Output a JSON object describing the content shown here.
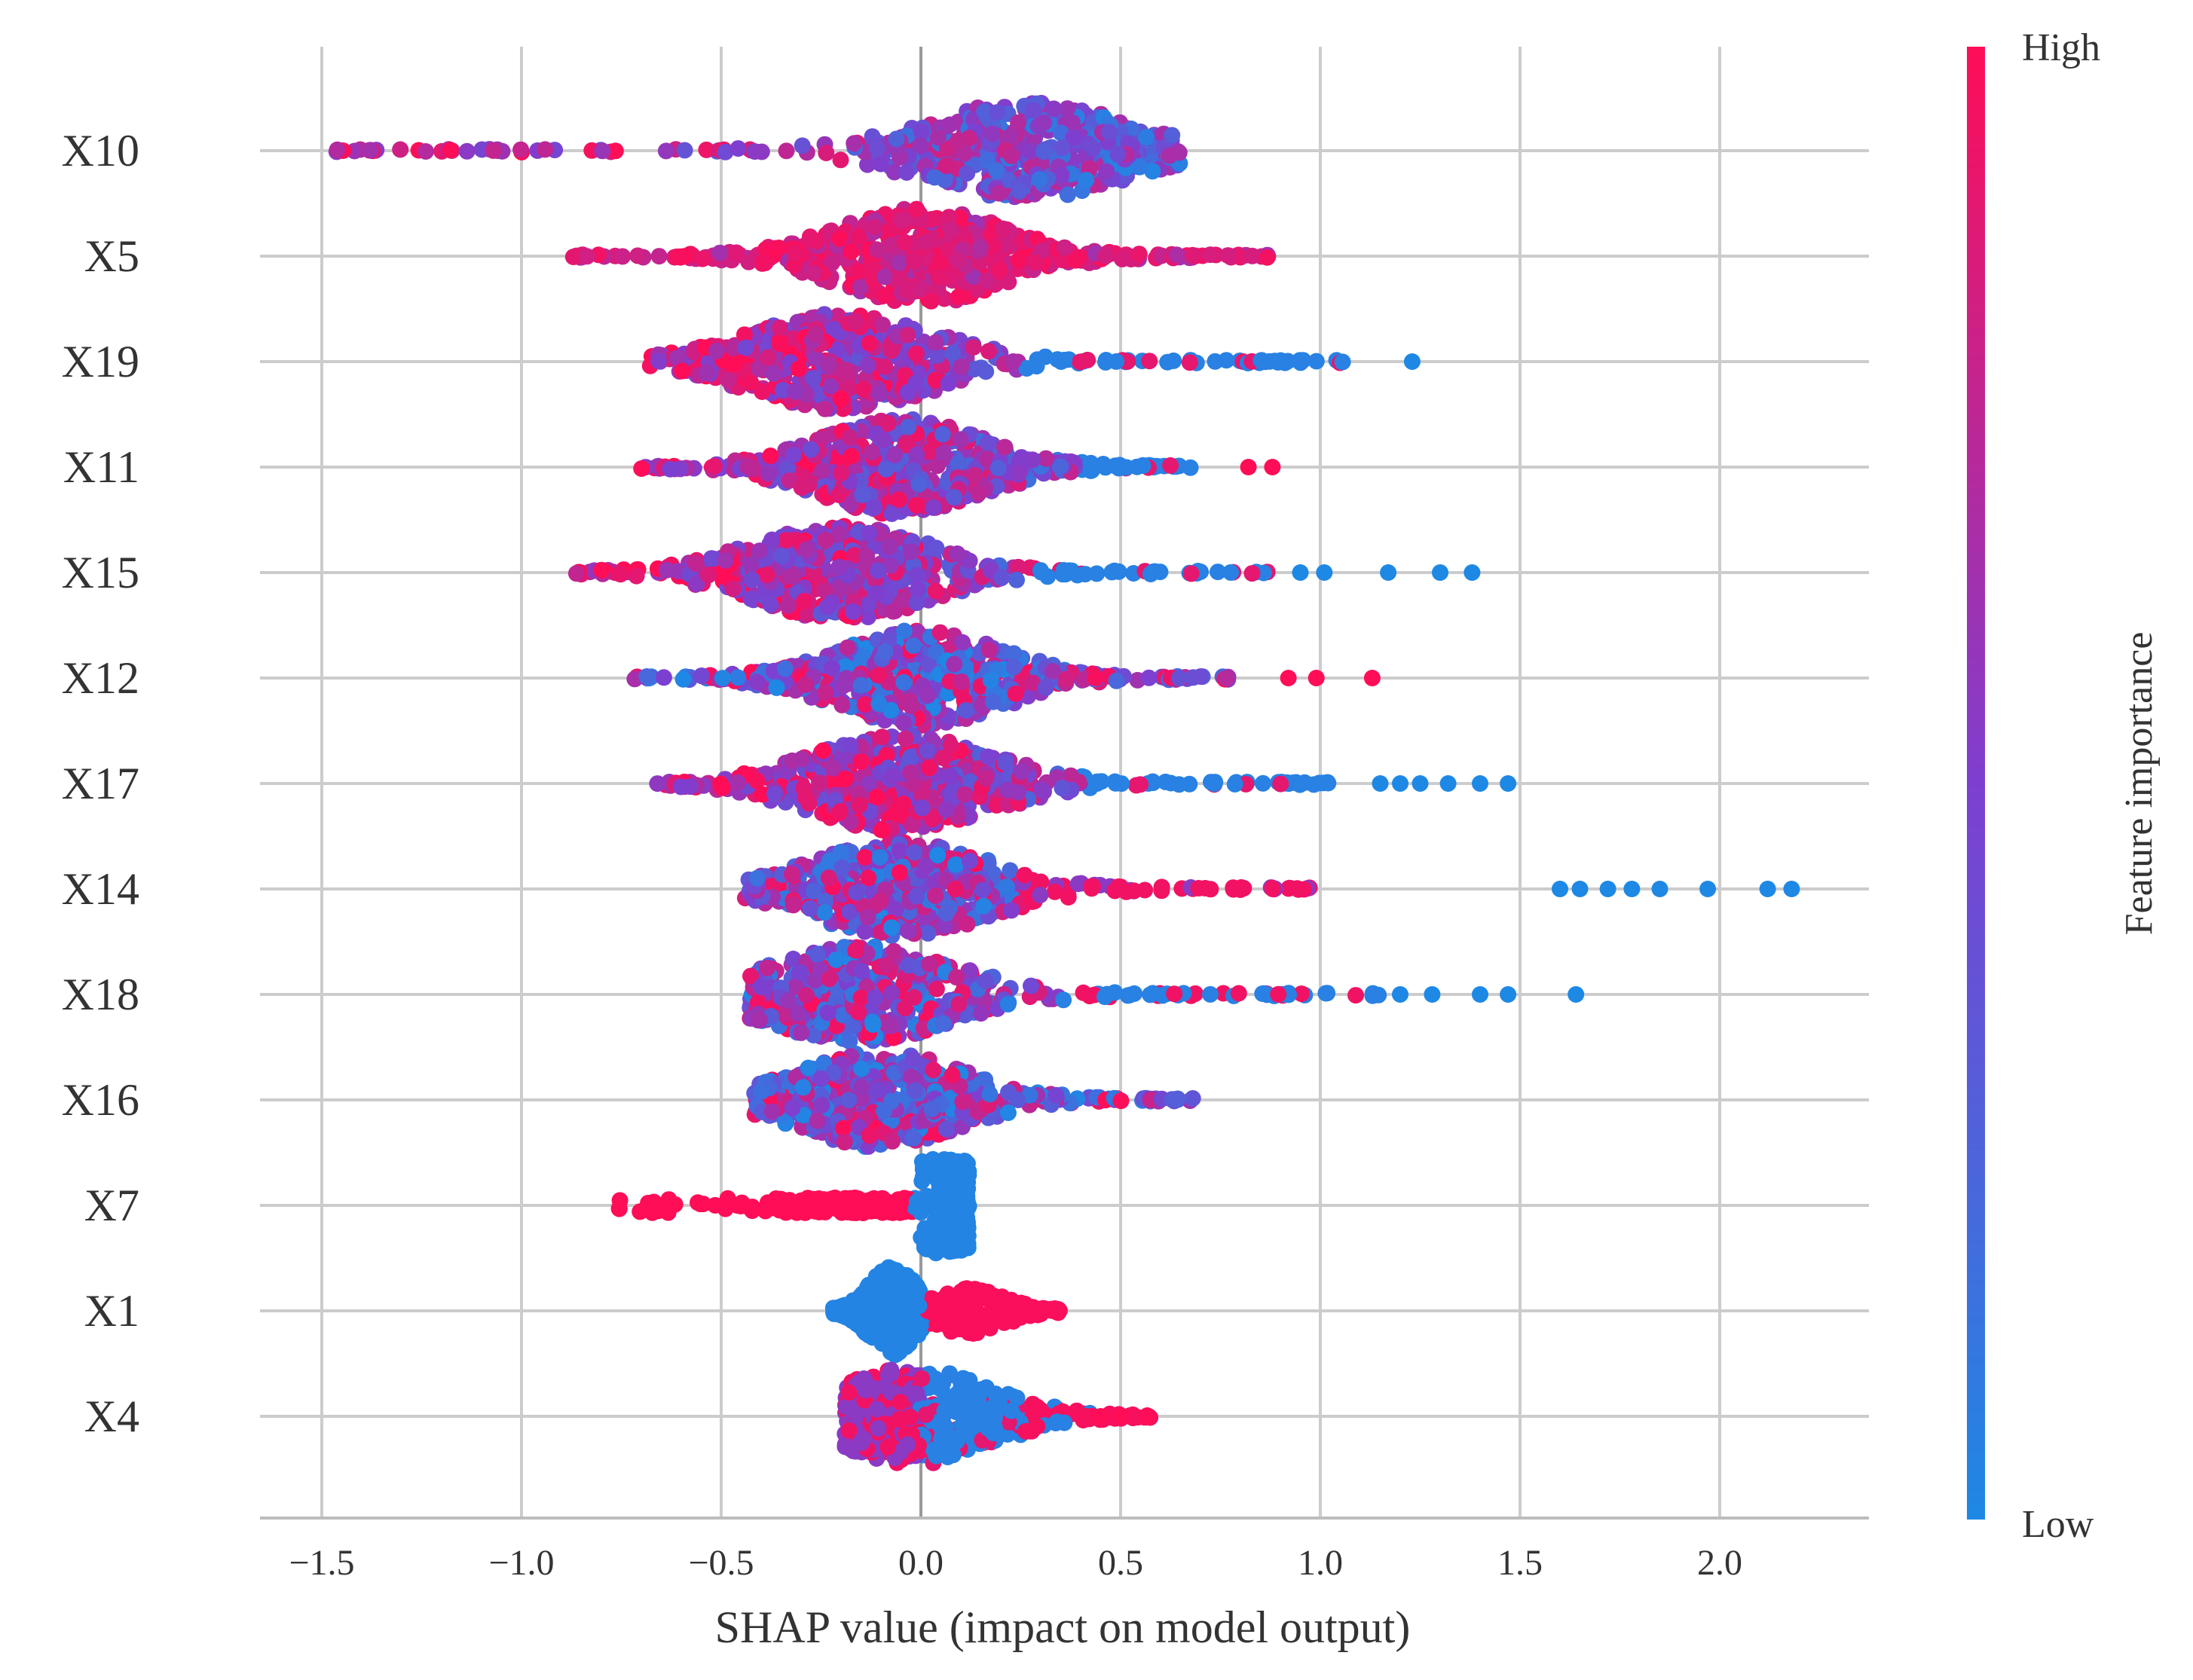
{
  "chart_data": {
    "type": "scatter",
    "subtype": "shap-beeswarm-summary",
    "title": "",
    "xlabel": "SHAP value (impact on model output)",
    "ylabel": "",
    "xlim": [
      -1.65,
      2.38
    ],
    "x_ticks": [
      "−1.5",
      "−1.0",
      "−0.5",
      "0.0",
      "0.5",
      "1.0",
      "1.5",
      "2.0"
    ],
    "x_tick_values": [
      -1.5,
      -1.0,
      -0.5,
      0.0,
      0.5,
      1.0,
      1.5,
      2.0
    ],
    "grid": true,
    "colorbar": {
      "label": "Feature importance",
      "high_label": "High",
      "low_label": "Low",
      "high_color": "#ff0d57",
      "mid_color": "#7e3fd0",
      "low_color": "#1e88e5"
    },
    "features": [
      {
        "name": "X10",
        "min": -1.47,
        "max": 0.65,
        "peak": 0.26,
        "color_trend": "high_left",
        "outliers": []
      },
      {
        "name": "X5",
        "min": -0.88,
        "max": 0.88,
        "peak": 0.0,
        "color_trend": "mixed_high",
        "outliers": []
      },
      {
        "name": "X19",
        "min": -0.68,
        "max": 1.08,
        "peak": -0.2,
        "color_trend": "high_left",
        "outliers": [
          {
            "x": 1.23,
            "c": "low"
          }
        ]
      },
      {
        "name": "X11",
        "min": -0.7,
        "max": 0.7,
        "peak": -0.05,
        "color_trend": "high_left",
        "outliers": [
          {
            "x": 0.82,
            "c": "high"
          },
          {
            "x": 0.88,
            "c": "high"
          }
        ]
      },
      {
        "name": "X15",
        "min": -0.87,
        "max": 0.88,
        "peak": -0.2,
        "color_trend": "high_left",
        "outliers": [
          {
            "x": 0.95,
            "c": "low"
          },
          {
            "x": 1.01,
            "c": "low"
          },
          {
            "x": 1.17,
            "c": "low"
          },
          {
            "x": 1.3,
            "c": "low"
          },
          {
            "x": 1.38,
            "c": "low"
          }
        ]
      },
      {
        "name": "X12",
        "min": -0.72,
        "max": 0.78,
        "peak": 0.0,
        "color_trend": "mixed",
        "outliers": [
          {
            "x": 0.92,
            "c": "high"
          },
          {
            "x": 0.99,
            "c": "high"
          },
          {
            "x": 1.13,
            "c": "high"
          }
        ]
      },
      {
        "name": "X17",
        "min": -0.67,
        "max": 1.1,
        "peak": -0.05,
        "color_trend": "high_left",
        "outliers": [
          {
            "x": 1.15,
            "c": "low"
          },
          {
            "x": 1.2,
            "c": "low"
          },
          {
            "x": 1.25,
            "c": "low"
          },
          {
            "x": 1.32,
            "c": "low"
          },
          {
            "x": 1.4,
            "c": "low"
          },
          {
            "x": 1.47,
            "c": "low"
          }
        ]
      },
      {
        "name": "X14",
        "min": -0.44,
        "max": 0.98,
        "peak": -0.05,
        "color_trend": "high_right",
        "outliers": [
          {
            "x": 1.6,
            "c": "low"
          },
          {
            "x": 1.65,
            "c": "low"
          },
          {
            "x": 1.72,
            "c": "low"
          },
          {
            "x": 1.78,
            "c": "low"
          },
          {
            "x": 1.85,
            "c": "low"
          },
          {
            "x": 1.97,
            "c": "low"
          },
          {
            "x": 2.12,
            "c": "low"
          },
          {
            "x": 2.18,
            "c": "low"
          }
        ]
      },
      {
        "name": "X18",
        "min": -0.43,
        "max": 1.15,
        "peak": -0.15,
        "color_trend": "mixed_low_right",
        "outliers": [
          {
            "x": 1.2,
            "c": "low"
          },
          {
            "x": 1.28,
            "c": "low"
          },
          {
            "x": 1.4,
            "c": "low"
          },
          {
            "x": 1.47,
            "c": "low"
          },
          {
            "x": 1.64,
            "c": "low"
          }
        ]
      },
      {
        "name": "X16",
        "min": -0.42,
        "max": 0.7,
        "peak": -0.1,
        "color_trend": "mixed",
        "outliers": []
      },
      {
        "name": "X7",
        "min": -0.78,
        "max": 0.12,
        "peak": 0.03,
        "color_trend": "x7",
        "outliers": []
      },
      {
        "name": "X1",
        "min": -0.22,
        "max": 0.35,
        "peak": -0.07,
        "color_trend": "x1",
        "outliers": []
      },
      {
        "name": "X4",
        "min": -0.19,
        "max": 0.58,
        "peak": -0.02,
        "color_trend": "x4",
        "outliers": [
          {
            "x": 0.45,
            "c": "high"
          },
          {
            "x": 0.5,
            "c": "high"
          },
          {
            "x": 0.57,
            "c": "high"
          }
        ]
      }
    ]
  }
}
